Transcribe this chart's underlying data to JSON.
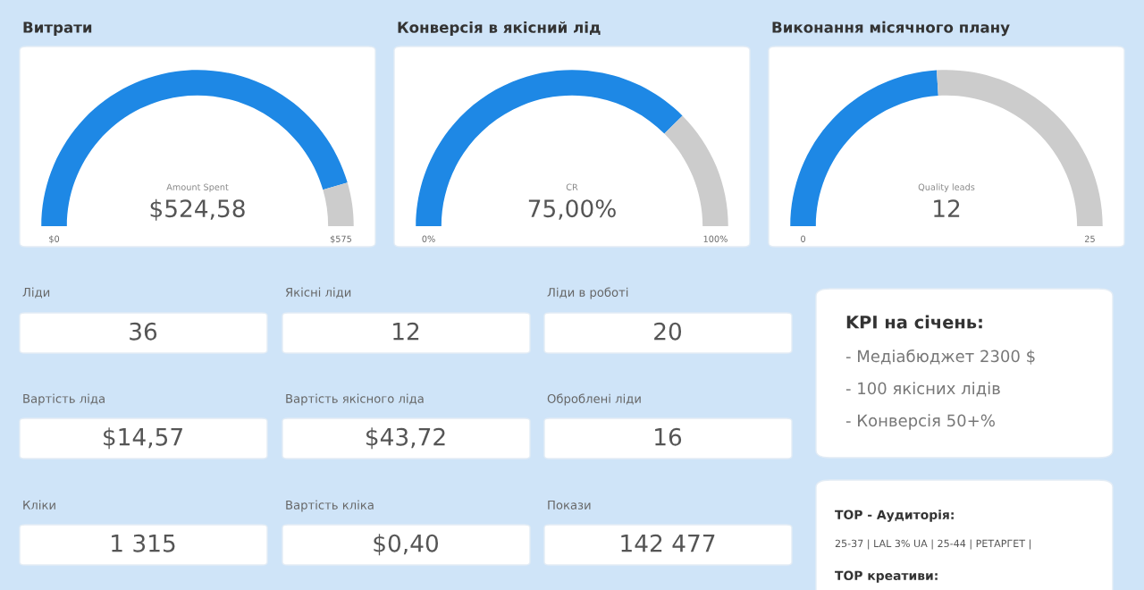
{
  "chart_data": [
    {
      "type": "donut",
      "title": "Витрати",
      "categories": [
        null,
        null
      ],
      "values": [
        91,
        9
      ],
      "colors": [
        "#1e88e5",
        "#cccccc"
      ],
      "annotations": [
        "Amount Spent",
        "$524,58",
        "$0",
        "$575"
      ]
    },
    {
      "type": "donut",
      "title": "Конверсія в якісний лід",
      "categories": [
        null,
        null
      ],
      "values": [
        75,
        25
      ],
      "colors": [
        "#1e88e5",
        "#cccccc"
      ],
      "annotations": [
        "CR",
        "75,00%",
        "0%",
        "100%"
      ]
    },
    {
      "type": "donut",
      "title": "Виконання місячного плану",
      "categories": [
        null,
        null
      ],
      "values": [
        48,
        52
      ],
      "colors": [
        "#1e88e5",
        "#cccccc"
      ],
      "annotations": [
        "Quality leads",
        "12",
        "0",
        "25"
      ]
    },
    {
      "type": "other",
      "annotations": [
        "Ліди",
        "36",
        "Якісні ліди",
        "12",
        "Ліди в роботі",
        "20",
        "Вартість ліда",
        "$14,57",
        "Вартість якісного ліда",
        "$43,72",
        "Оброблені ліди",
        "16",
        "Кліки",
        "1 315",
        "Вартість кліка",
        "$0,40",
        "Покази",
        "142 477"
      ]
    },
    {
      "type": "other",
      "title": "KPI на січень:",
      "annotations": [
        "- Медіабюджет 2300 $",
        "- 100 якісних лідів",
        "- Конверсія 50+%"
      ]
    },
    {
      "type": "other",
      "title": "TOP - Аудиторія:",
      "annotations": [
        "25-37 | LAL 3% UA | 25-44 | РЕТАРГЕТ |",
        "TOP креативи:"
      ]
    }
  ]
}
